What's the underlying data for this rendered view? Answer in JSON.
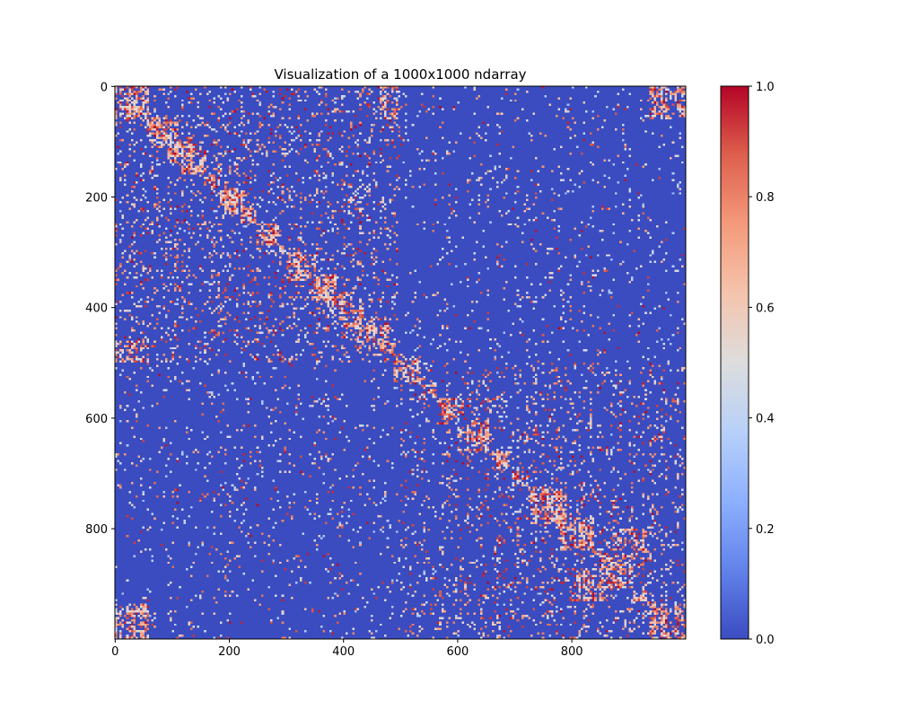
{
  "chart_data": {
    "type": "heatmap",
    "title": "Visualization of a 1000x1000 ndarray",
    "xlabel": "",
    "ylabel": "",
    "shape": [
      1000,
      1000
    ],
    "colormap": "coolwarm",
    "xlim": [
      0,
      1000
    ],
    "ylim": [
      1000,
      0
    ],
    "x_ticks": [
      0,
      200,
      400,
      600,
      800
    ],
    "x_tick_labels": [
      "0",
      "200",
      "400",
      "600",
      "800"
    ],
    "y_ticks": [
      0,
      200,
      400,
      600,
      800
    ],
    "y_tick_labels": [
      "0",
      "200",
      "400",
      "600",
      "800"
    ],
    "colorbar": {
      "min": 0.0,
      "max": 1.0,
      "ticks": [
        0.0,
        0.2,
        0.4,
        0.6,
        0.8,
        1.0
      ],
      "tick_labels": [
        "0.0",
        "0.2",
        "0.4",
        "0.6",
        "0.8",
        "1.0"
      ],
      "placement": "right"
    },
    "grid": false,
    "colors": {
      "low": "#3b4cc0",
      "mid": "#dddddd",
      "high": "#b40426"
    },
    "block_structure": [
      {
        "rows": [
          0,
          500
        ],
        "cols": [
          0,
          500
        ],
        "density": 0.18
      },
      {
        "rows": [
          500,
          1000
        ],
        "cols": [
          500,
          1000
        ],
        "density": 0.2
      },
      {
        "rows": [
          0,
          500
        ],
        "cols": [
          500,
          1000
        ],
        "density": 0.05
      },
      {
        "rows": [
          500,
          1000
        ],
        "cols": [
          0,
          500
        ],
        "density": 0.05
      }
    ],
    "dense_blocks": [
      {
        "rows": [
          0,
          60
        ],
        "cols": [
          0,
          60
        ]
      },
      {
        "rows": [
          0,
          60
        ],
        "cols": [
          935,
          1000
        ]
      },
      {
        "rows": [
          935,
          1000
        ],
        "cols": [
          0,
          60
        ]
      },
      {
        "rows": [
          935,
          1000
        ],
        "cols": [
          935,
          1000
        ]
      },
      {
        "rows": [
          60,
          110
        ],
        "cols": [
          60,
          110
        ]
      },
      {
        "rows": [
          110,
          160
        ],
        "cols": [
          110,
          160
        ]
      },
      {
        "rows": [
          190,
          230
        ],
        "cols": [
          190,
          230
        ]
      },
      {
        "rows": [
          300,
          350
        ],
        "cols": [
          300,
          350
        ]
      },
      {
        "rows": [
          370,
          420
        ],
        "cols": [
          370,
          420
        ]
      },
      {
        "rows": [
          420,
          480
        ],
        "cols": [
          420,
          480
        ]
      },
      {
        "rows": [
          600,
          660
        ],
        "cols": [
          600,
          660
        ]
      },
      {
        "rows": [
          730,
          790
        ],
        "cols": [
          730,
          790
        ]
      },
      {
        "rows": [
          780,
          840
        ],
        "cols": [
          780,
          840
        ]
      },
      {
        "rows": [
          840,
          900
        ],
        "cols": [
          840,
          900
        ]
      },
      {
        "rows": [
          800,
          860
        ],
        "cols": [
          870,
          930
        ]
      },
      {
        "rows": [
          870,
          930
        ],
        "cols": [
          800,
          860
        ]
      },
      {
        "rows": [
          460,
          500
        ],
        "cols": [
          0,
          60
        ]
      },
      {
        "rows": [
          0,
          60
        ],
        "cols": [
          460,
          500
        ]
      }
    ]
  }
}
